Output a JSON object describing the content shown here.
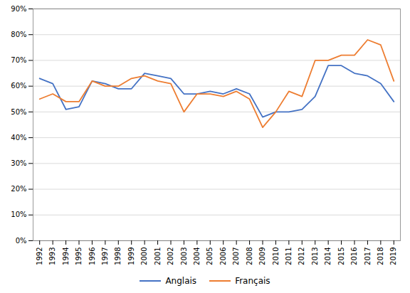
{
  "chart_data": {
    "type": "line",
    "x": [
      1992,
      1993,
      1994,
      1995,
      1996,
      1997,
      1998,
      1999,
      2000,
      2001,
      2002,
      2003,
      2004,
      2005,
      2006,
      2007,
      2008,
      2009,
      2010,
      2011,
      2012,
      2013,
      2014,
      2015,
      2016,
      2017,
      2018,
      2019
    ],
    "series": [
      {
        "name": "Anglais",
        "color": "#4472C4",
        "values": [
          0.63,
          0.61,
          0.51,
          0.52,
          0.62,
          0.61,
          0.59,
          0.59,
          0.65,
          0.64,
          0.63,
          0.57,
          0.57,
          0.58,
          0.57,
          0.59,
          0.57,
          0.48,
          0.5,
          0.5,
          0.51,
          0.56,
          0.68,
          0.68,
          0.65,
          0.64,
          0.61,
          0.54
        ]
      },
      {
        "name": "Français",
        "color": "#ED7D31",
        "values": [
          0.55,
          0.57,
          0.54,
          0.54,
          0.62,
          0.6,
          0.6,
          0.63,
          0.64,
          0.62,
          0.61,
          0.5,
          0.57,
          0.57,
          0.56,
          0.58,
          0.55,
          0.44,
          0.5,
          0.58,
          0.56,
          0.7,
          0.7,
          0.72,
          0.72,
          0.78,
          0.76,
          0.62
        ]
      }
    ],
    "xlim": [
      1991.5,
      2019.5
    ],
    "xticks": [
      1992,
      1993,
      1994,
      1995,
      1996,
      1997,
      1998,
      1999,
      2000,
      2001,
      2002,
      2003,
      2004,
      2005,
      2006,
      2007,
      2008,
      2009,
      2010,
      2011,
      2012,
      2013,
      2014,
      2015,
      2016,
      2017,
      2018,
      2019
    ],
    "ylim": [
      0,
      0.9
    ],
    "yticks": [
      {
        "value": 0.0,
        "label": "0%"
      },
      {
        "value": 0.1,
        "label": "10%"
      },
      {
        "value": 0.2,
        "label": "20%"
      },
      {
        "value": 0.3,
        "label": "30%"
      },
      {
        "value": 0.4,
        "label": "40%"
      },
      {
        "value": 0.5,
        "label": "50%"
      },
      {
        "value": 0.6,
        "label": "60%"
      },
      {
        "value": 0.7,
        "label": "70%"
      },
      {
        "value": 0.8,
        "label": "80%"
      },
      {
        "value": 0.9,
        "label": "90%"
      }
    ],
    "grid": true,
    "legend": "bottom"
  }
}
